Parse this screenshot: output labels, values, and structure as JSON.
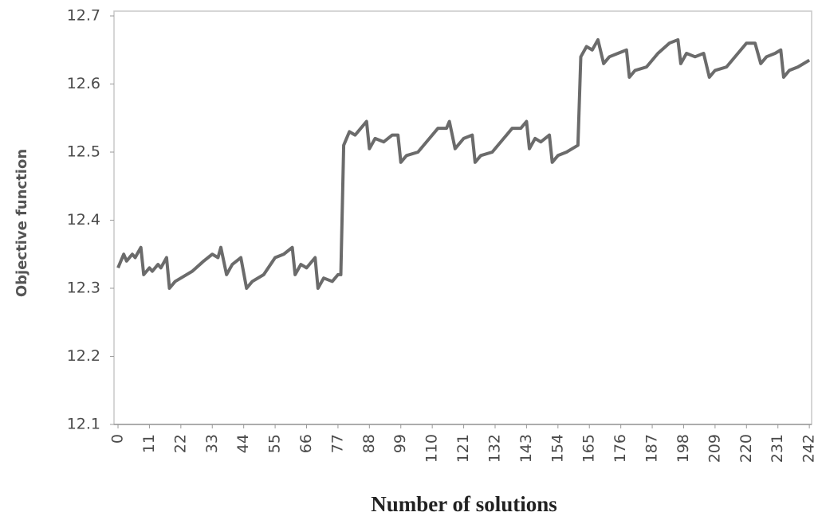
{
  "chart_data": {
    "type": "line",
    "x_label": "Number of solutions",
    "y_label": "Objective function",
    "x": [
      0,
      2,
      3,
      5,
      6,
      8,
      9,
      11,
      12,
      14,
      15,
      17,
      18,
      20,
      22,
      26,
      30,
      33,
      35,
      36,
      38,
      40,
      43,
      45,
      47,
      51,
      55,
      58,
      61,
      62,
      64,
      66,
      69,
      70,
      72,
      75,
      77,
      78,
      79,
      81,
      83,
      85,
      87,
      88,
      90,
      93,
      96,
      98,
      99,
      101,
      105,
      109,
      112,
      115,
      116,
      118,
      121,
      124,
      125,
      127,
      131,
      135,
      138,
      141,
      143,
      144,
      146,
      148,
      151,
      152,
      154,
      157,
      159,
      161,
      162,
      164,
      166,
      168,
      170,
      172,
      175,
      178,
      179,
      181,
      185,
      189,
      193,
      196,
      197,
      199,
      202,
      205,
      207,
      209,
      213,
      217,
      220,
      223,
      225,
      227,
      230,
      232,
      233,
      235,
      238,
      240,
      242
    ],
    "series": [
      {
        "name": "Objective function",
        "color": "#6b6b6b",
        "values": [
          12.33,
          12.35,
          12.34,
          12.35,
          12.345,
          12.36,
          12.32,
          12.33,
          12.325,
          12.335,
          12.33,
          12.345,
          12.3,
          12.31,
          12.315,
          12.325,
          12.34,
          12.35,
          12.345,
          12.36,
          12.32,
          12.335,
          12.345,
          12.3,
          12.31,
          12.32,
          12.345,
          12.35,
          12.36,
          12.32,
          12.335,
          12.33,
          12.345,
          12.3,
          12.315,
          12.31,
          12.32,
          12.32,
          12.51,
          12.53,
          12.525,
          12.535,
          12.545,
          12.505,
          12.52,
          12.515,
          12.525,
          12.525,
          12.485,
          12.495,
          12.5,
          12.52,
          12.535,
          12.535,
          12.545,
          12.505,
          12.52,
          12.525,
          12.485,
          12.495,
          12.5,
          12.52,
          12.535,
          12.535,
          12.545,
          12.505,
          12.52,
          12.515,
          12.525,
          12.485,
          12.495,
          12.5,
          12.505,
          12.51,
          12.64,
          12.655,
          12.65,
          12.665,
          12.63,
          12.64,
          12.645,
          12.65,
          12.61,
          12.62,
          12.625,
          12.645,
          12.66,
          12.665,
          12.63,
          12.645,
          12.64,
          12.645,
          12.61,
          12.62,
          12.625,
          12.645,
          12.66,
          12.66,
          12.63,
          12.64,
          12.645,
          12.65,
          12.61,
          12.62,
          12.625,
          12.63,
          12.635
        ]
      }
    ],
    "xlim": [
      -1.4,
      242.8
    ],
    "xticks": [
      0,
      11,
      22,
      33,
      44,
      55,
      66,
      77,
      88,
      99,
      110,
      121,
      132,
      143,
      154,
      165,
      176,
      187,
      198,
      209,
      220,
      231,
      242
    ],
    "ylim": [
      12.1,
      12.7
    ],
    "yticks": [
      12.1,
      12.2,
      12.3,
      12.4,
      12.5,
      12.6,
      12.7
    ],
    "grid": false
  }
}
